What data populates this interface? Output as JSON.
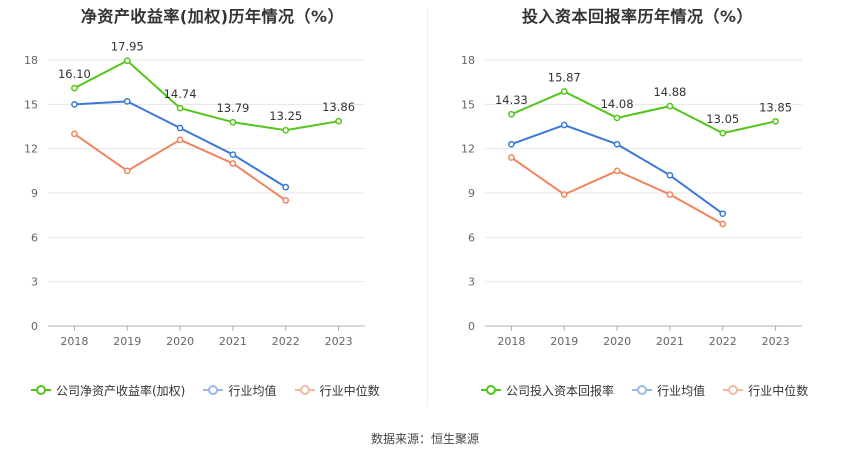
{
  "charts": {
    "left": {
      "title": "净资产收益率(加权)历年情况（%）",
      "legend": [
        "公司净资产收益率(加权)",
        "行业均值",
        "行业中位数"
      ]
    },
    "right": {
      "title": "投入资本回报率历年情况（%）",
      "legend": [
        "公司投入资本回报率",
        "行业均值",
        "行业中位数"
      ]
    }
  },
  "source": "数据来源：恒生聚源",
  "colors": {
    "company": "#52c41a",
    "industry_mean": "#3b78d8",
    "industry_median": "#f0845c",
    "axis": "#b0b0b0",
    "grid": "#e6e6e6"
  },
  "chart_data": [
    {
      "type": "line",
      "title": "净资产收益率(加权)历年情况（%）",
      "categories": [
        "2018",
        "2019",
        "2020",
        "2021",
        "2022",
        "2023"
      ],
      "ylim": [
        0,
        18
      ],
      "yticks": [
        0,
        3,
        6,
        9,
        12,
        15,
        18
      ],
      "grid": true,
      "legend_position": "bottom",
      "series": [
        {
          "name": "公司净资产收益率(加权)",
          "values": [
            16.1,
            17.95,
            14.74,
            13.79,
            13.25,
            13.86
          ],
          "labels": [
            "16.10",
            "17.95",
            "14.74",
            "13.79",
            "13.25",
            "13.86"
          ]
        },
        {
          "name": "行业均值",
          "values": [
            15.0,
            15.2,
            13.4,
            11.6,
            9.4,
            null
          ]
        },
        {
          "name": "行业中位数",
          "values": [
            13.0,
            10.5,
            12.6,
            11.0,
            8.5,
            null
          ]
        }
      ]
    },
    {
      "type": "line",
      "title": "投入资本回报率历年情况（%）",
      "categories": [
        "2018",
        "2019",
        "2020",
        "2021",
        "2022",
        "2023"
      ],
      "ylim": [
        0,
        18
      ],
      "yticks": [
        0,
        3,
        6,
        9,
        12,
        15,
        18
      ],
      "grid": true,
      "legend_position": "bottom",
      "series": [
        {
          "name": "公司投入资本回报率",
          "values": [
            14.33,
            15.87,
            14.08,
            14.88,
            13.05,
            13.85
          ],
          "labels": [
            "14.33",
            "15.87",
            "14.08",
            "14.88",
            "13.05",
            "13.85"
          ]
        },
        {
          "name": "行业均值",
          "values": [
            12.3,
            13.6,
            12.3,
            10.2,
            7.6,
            null
          ]
        },
        {
          "name": "行业中位数",
          "values": [
            11.4,
            8.9,
            10.5,
            8.9,
            6.9,
            null
          ]
        }
      ]
    }
  ]
}
